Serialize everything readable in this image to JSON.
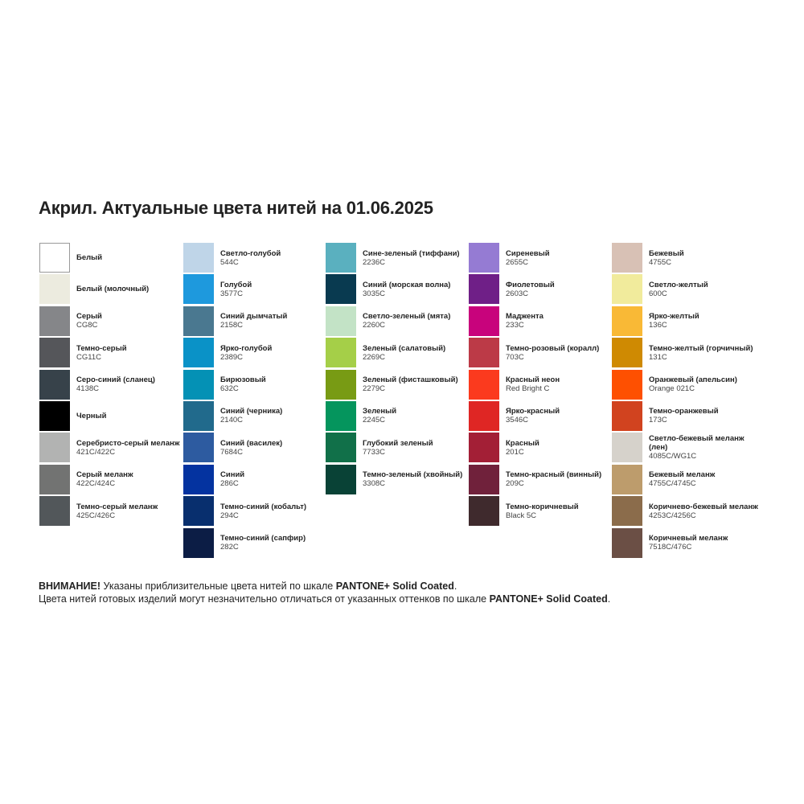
{
  "title": "Акрил. Актуальные цвета нитей на 01.06.2025",
  "columns": [
    [
      {
        "name": "Белый",
        "code": "",
        "color": "#ffffff"
      },
      {
        "name": "Белый (молочный)",
        "code": "",
        "color": "#ecebdf"
      },
      {
        "name": "Серый",
        "code": "CG8C",
        "color": "#858689"
      },
      {
        "name": "Темно-серый",
        "code": "CG11C",
        "color": "#55565a"
      },
      {
        "name": "Серо-синий (сланец)",
        "code": "4138C",
        "color": "#37424a"
      },
      {
        "name": "Черный",
        "code": "",
        "color": "#000000"
      },
      {
        "name": "Серебристо-серый меланж",
        "code": "421C/422C",
        "color": "#b2b3b2"
      },
      {
        "name": "Серый меланж",
        "code": "422C/424C",
        "color": "#727372"
      },
      {
        "name": "Темно-серый меланж",
        "code": "425C/426C",
        "color": "#52575a"
      }
    ],
    [
      {
        "name": "Светло-голубой",
        "code": "544C",
        "color": "#bfd5e8"
      },
      {
        "name": "Голубой",
        "code": "3577C",
        "color": "#1e99dd"
      },
      {
        "name": "Синий дымчатый",
        "code": "2158C",
        "color": "#4a7890"
      },
      {
        "name": "Ярко-голубой",
        "code": "2389C",
        "color": "#0a92c7"
      },
      {
        "name": "Бирюзовый",
        "code": "632C",
        "color": "#0491b5"
      },
      {
        "name": "Синий (черника)",
        "code": "2140C",
        "color": "#216a8c"
      },
      {
        "name": "Синий (василек)",
        "code": "7684C",
        "color": "#2d5ba0"
      },
      {
        "name": "Синий",
        "code": "286C",
        "color": "#0433a0"
      },
      {
        "name": "Темно-синий (кобальт)",
        "code": "294C",
        "color": "#082f6e"
      },
      {
        "name": "Темно-синий (сапфир)",
        "code": "282C",
        "color": "#0c1d45"
      }
    ],
    [
      {
        "name": "Сине-зеленый (тиффани)",
        "code": "2236C",
        "color": "#5ab0bf"
      },
      {
        "name": "Синий (морская волна)",
        "code": "3035C",
        "color": "#093a50"
      },
      {
        "name": "Светло-зеленый (мята)",
        "code": "2260C",
        "color": "#c3e3c6"
      },
      {
        "name": "Зеленый (салатовый)",
        "code": "2269C",
        "color": "#a5cf48"
      },
      {
        "name": "Зеленый (фисташковый)",
        "code": "2279C",
        "color": "#789b14"
      },
      {
        "name": "Зеленый",
        "code": "2245C",
        "color": "#05955d"
      },
      {
        "name": "Глубокий зеленый",
        "code": "7733C",
        "color": "#117049"
      },
      {
        "name": "Темно-зеленый (хвойный)",
        "code": "3308C",
        "color": "#094236"
      }
    ],
    [
      {
        "name": "Сиреневый",
        "code": "2655C",
        "color": "#957bd3"
      },
      {
        "name": "Фиолетовый",
        "code": "2603C",
        "color": "#6f1f87"
      },
      {
        "name": "Маджента",
        "code": "233C",
        "color": "#c8037c"
      },
      {
        "name": "Темно-розовый (коралл)",
        "code": "703C",
        "color": "#bc3a47"
      },
      {
        "name": "Красный неон",
        "code": "Red Bright C",
        "color": "#fb3a1e"
      },
      {
        "name": "Ярко-красный",
        "code": "3546C",
        "color": "#df2624"
      },
      {
        "name": "Красный",
        "code": "201C",
        "color": "#a31f36"
      },
      {
        "name": "Темно-красный (винный)",
        "code": "209C",
        "color": "#70213b"
      },
      {
        "name": "Темно-коричневый",
        "code": "Black 5C",
        "color": "#3f2a2d"
      }
    ],
    [
      {
        "name": "Бежевый",
        "code": "4755C",
        "color": "#d8c1b5"
      },
      {
        "name": "Светло-желтый",
        "code": "600C",
        "color": "#f1eb9c"
      },
      {
        "name": "Ярко-желтый",
        "code": "136C",
        "color": "#f9b936"
      },
      {
        "name": "Темно-желтый (горчичный)",
        "code": "131C",
        "color": "#cf8a02"
      },
      {
        "name": "Оранжевый (апельсин)",
        "code": "Orange 021C",
        "color": "#fe5001"
      },
      {
        "name": "Темно-оранжевый",
        "code": "173C",
        "color": "#d1431f"
      },
      {
        "name": "Светло-бежевый меланж (лен)",
        "code": "4085C/WG1C",
        "color": "#d6d2cb"
      },
      {
        "name": "Бежевый меланж",
        "code": "4755C/4745C",
        "color": "#bd9c6c"
      },
      {
        "name": "Коричнево-бежевый меланж",
        "code": "4253C/4256C",
        "color": "#8b6c4b"
      },
      {
        "name": "Коричневый меланж",
        "code": "7518C/476C",
        "color": "#6b4f45"
      }
    ]
  ],
  "notes": {
    "line1_bold": "ВНИМАНИЕ!",
    "line1_text": " Указаны приблизительные цвета нитей по шкале ",
    "line1_scale": "PANTONE+ Solid Coated",
    "line1_end": ".",
    "line2_text": "Цвета нитей готовых изделий могут незначительно отличаться от указанных оттенков по шкале ",
    "line2_scale": "PANTONE+ Solid Coated",
    "line2_end": "."
  }
}
